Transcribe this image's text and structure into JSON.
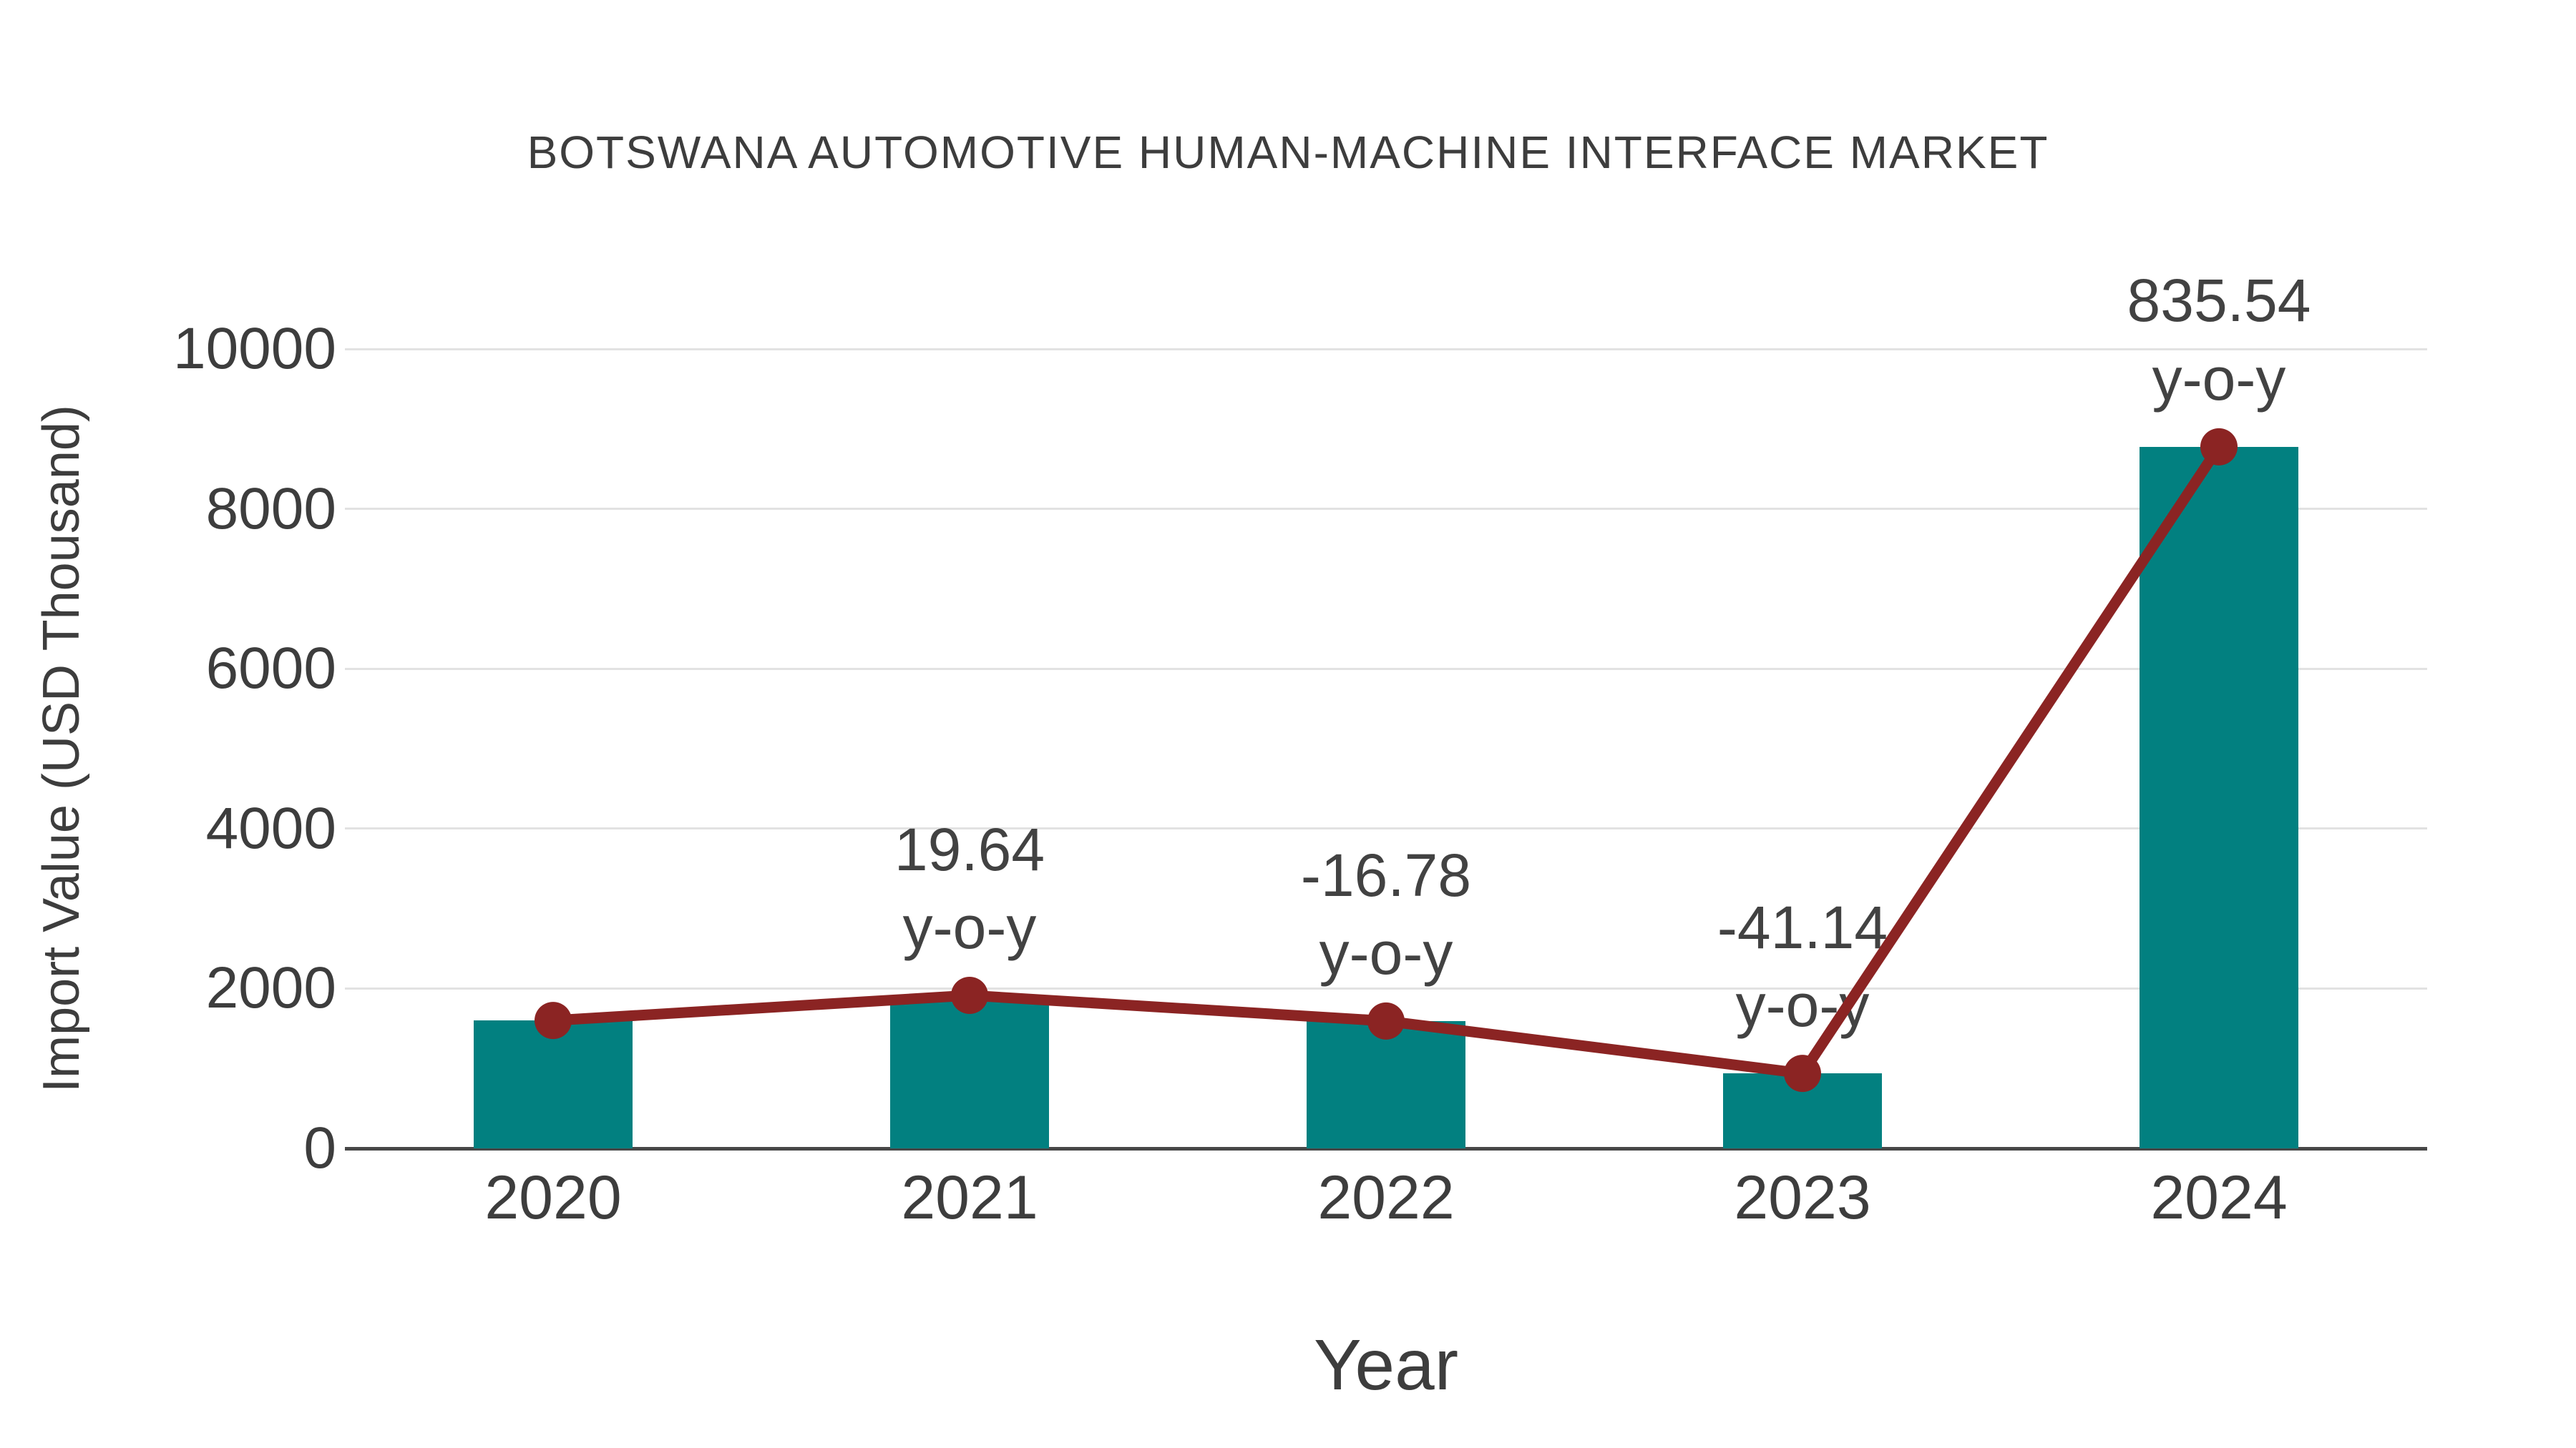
{
  "chart_data": {
    "type": "bar",
    "title": "BOTSWANA AUTOMOTIVE HUMAN-MACHINE INTERFACE MARKET",
    "categories": [
      "2020",
      "2021",
      "2022",
      "2023",
      "2024"
    ],
    "series": [
      {
        "name": "Import Value (USD Thousand)",
        "type": "bar",
        "color": "#028080",
        "values": [
          1600,
          1914,
          1593,
          938,
          8776
        ]
      },
      {
        "name": "y-o-y trend line",
        "type": "line",
        "color": "#8B2423",
        "values": [
          1600,
          1914,
          1593,
          938,
          8776
        ]
      }
    ],
    "point_labels": [
      "",
      "19.64",
      "-16.78",
      "-41.14",
      "835.54"
    ],
    "point_label_suffix": "y-o-y",
    "xlabel": "Year",
    "ylabel": "Import Value (USD Thousand)",
    "yticks": [
      0,
      2000,
      4000,
      6000,
      8000,
      10000
    ],
    "ylim": [
      0,
      10000
    ],
    "grid": "horizontal",
    "legend": "none",
    "background": "#ffffff"
  },
  "colors": {
    "bar": "#028080",
    "line": "#8B2423",
    "marker": "#8B2423",
    "title_text": "#3d3d3d",
    "tick_text": "#3d3d3d",
    "label_text": "#424242",
    "gridline": "#e2e2e2",
    "axis_line": "#474747",
    "background": "#ffffff"
  }
}
